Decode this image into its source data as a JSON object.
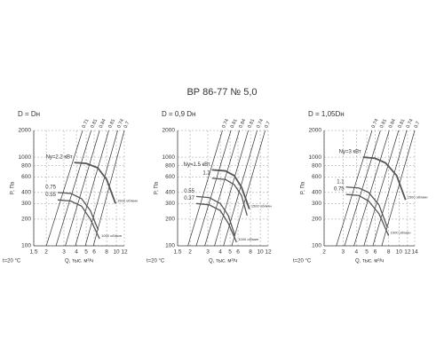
{
  "title": "ВР 86-77 № 5,0",
  "chart_data": [
    {
      "type": "line",
      "title": "D = Dн",
      "x_label": "Q, тыс. м³/ч",
      "y_label": "P, Па",
      "note": "t=20 °C",
      "log_scale": true,
      "grid": true,
      "xlim": [
        1.5,
        12
      ],
      "xticks": [
        1.5,
        2,
        3,
        4,
        5,
        6,
        8,
        10,
        12
      ],
      "ylim": [
        100,
        2000
      ],
      "yticks": [
        100,
        200,
        300,
        400,
        600,
        800,
        1000,
        2000
      ],
      "series": [
        {
          "name": "Ny=2.2 кВт",
          "color": "#555555",
          "end_label": "1500 об/мин",
          "x": [
            3.8,
            5,
            6.5,
            8,
            9.8
          ],
          "values": [
            870,
            850,
            760,
            560,
            300
          ]
        },
        {
          "name": "0.75",
          "color": "#555555",
          "x": [
            2.6,
            3.5,
            4.5,
            5.5,
            6.6
          ],
          "values": [
            400,
            390,
            340,
            250,
            150
          ]
        },
        {
          "name": "0.55",
          "color": "#555555",
          "end_label": "1000 об/мин",
          "x": [
            2.6,
            3.5,
            4.5,
            5.5,
            6.8
          ],
          "values": [
            330,
            320,
            280,
            200,
            120
          ]
        }
      ],
      "efficiency_lines": [
        {
          "name": "0.71",
          "x": [
            2.0,
            4.6
          ],
          "values": [
            100,
            2000
          ]
        },
        {
          "name": "0.81",
          "x": [
            2.5,
            5.6
          ],
          "values": [
            100,
            2000
          ]
        },
        {
          "name": "0.84",
          "x": [
            3.1,
            6.8
          ],
          "values": [
            100,
            2000
          ]
        },
        {
          "name": "0.81",
          "x": [
            3.9,
            8.4
          ],
          "values": [
            100,
            2000
          ]
        },
        {
          "name": "0.74",
          "x": [
            4.9,
            10.3
          ],
          "values": [
            100,
            2000
          ]
        },
        {
          "name": "0.7",
          "x": [
            5.9,
            12
          ],
          "values": [
            100,
            2000
          ]
        }
      ]
    },
    {
      "type": "line",
      "title": "D = 0,9 Dн",
      "x_label": "Q, тыс. м³/ч",
      "y_label": "P, Па",
      "note": "t=20 °C",
      "log_scale": true,
      "grid": true,
      "xlim": [
        1.5,
        12
      ],
      "xticks": [
        1.5,
        2,
        3,
        4,
        5,
        6,
        8,
        10,
        12
      ],
      "ylim": [
        100,
        2000
      ],
      "yticks": [
        100,
        200,
        300,
        400,
        600,
        800,
        1000,
        2000
      ],
      "series": [
        {
          "name": "Ny=1.5 кВт",
          "color": "#555555",
          "end_label": "1500 об/мин",
          "x": [
            3.3,
            4.5,
            5.5,
            6.5,
            7.8
          ],
          "values": [
            720,
            700,
            620,
            460,
            260
          ]
        },
        {
          "name": "1.1",
          "color": "#555555",
          "x": [
            3.3,
            4.5,
            5.5,
            6.5,
            7.4
          ],
          "values": [
            580,
            560,
            490,
            370,
            220
          ]
        },
        {
          "name": "0.55",
          "color": "#555555",
          "x": [
            2.3,
            3.1,
            4,
            4.8,
            5.6
          ],
          "values": [
            360,
            350,
            300,
            220,
            130
          ]
        },
        {
          "name": "0.37",
          "color": "#555555",
          "end_label": "1000 об/мин",
          "x": [
            2.3,
            3.1,
            4,
            4.8,
            5.8
          ],
          "values": [
            300,
            290,
            250,
            180,
            110
          ]
        }
      ],
      "efficiency_lines": [
        {
          "name": "0.74",
          "x": [
            1.9,
            4.2
          ],
          "values": [
            100,
            2000
          ]
        },
        {
          "name": "0.81",
          "x": [
            2.3,
            5.1
          ],
          "values": [
            100,
            2000
          ]
        },
        {
          "name": "0.84",
          "x": [
            2.8,
            6.2
          ],
          "values": [
            100,
            2000
          ]
        },
        {
          "name": "0.81",
          "x": [
            3.5,
            7.6
          ],
          "values": [
            100,
            2000
          ]
        },
        {
          "name": "0.74",
          "x": [
            4.3,
            9.3
          ],
          "values": [
            100,
            2000
          ]
        },
        {
          "name": "0.7",
          "x": [
            5.2,
            11.2
          ],
          "values": [
            100,
            2000
          ]
        }
      ]
    },
    {
      "type": "line",
      "title": "D = 1,05Dн",
      "x_label": "Q, тыс. м³/ч",
      "y_label": "P, Па",
      "note": "t=20 °C",
      "log_scale": true,
      "grid": true,
      "xlim": [
        2,
        14
      ],
      "xticks": [
        2,
        3,
        4,
        5,
        6,
        8,
        10,
        12,
        14
      ],
      "ylim": [
        100,
        2000
      ],
      "yticks": [
        100,
        200,
        300,
        400,
        600,
        800,
        1000,
        2000
      ],
      "series": [
        {
          "name": "Ny=3 кВт",
          "color": "#555555",
          "end_label": "1500 об/мин",
          "x": [
            4.6,
            6,
            7.5,
            9.5,
            11.5
          ],
          "values": [
            1000,
            970,
            860,
            620,
            330
          ]
        },
        {
          "name": "1.1",
          "color": "#555555",
          "x": [
            3.2,
            4.2,
            5.2,
            6.5,
            7.8
          ],
          "values": [
            460,
            450,
            400,
            290,
            160
          ]
        },
        {
          "name": "0.75",
          "color": "#555555",
          "end_label": "1000 об/мин",
          "x": [
            3.2,
            4.2,
            5.2,
            6.5,
            8
          ],
          "values": [
            380,
            370,
            320,
            230,
            130
          ]
        }
      ],
      "efficiency_lines": [
        {
          "name": "0.74",
          "x": [
            2.6,
            5.6
          ],
          "values": [
            100,
            2000
          ]
        },
        {
          "name": "0.81",
          "x": [
            3.1,
            6.7
          ],
          "values": [
            100,
            2000
          ]
        },
        {
          "name": "0.84",
          "x": [
            3.8,
            8.1
          ],
          "values": [
            100,
            2000
          ]
        },
        {
          "name": "0.81",
          "x": [
            4.7,
            9.9
          ],
          "values": [
            100,
            2000
          ]
        },
        {
          "name": "0.74",
          "x": [
            5.7,
            11.8
          ],
          "values": [
            100,
            2000
          ]
        },
        {
          "name": "0.7",
          "x": [
            6.9,
            14
          ],
          "values": [
            100,
            2000
          ]
        }
      ]
    }
  ]
}
